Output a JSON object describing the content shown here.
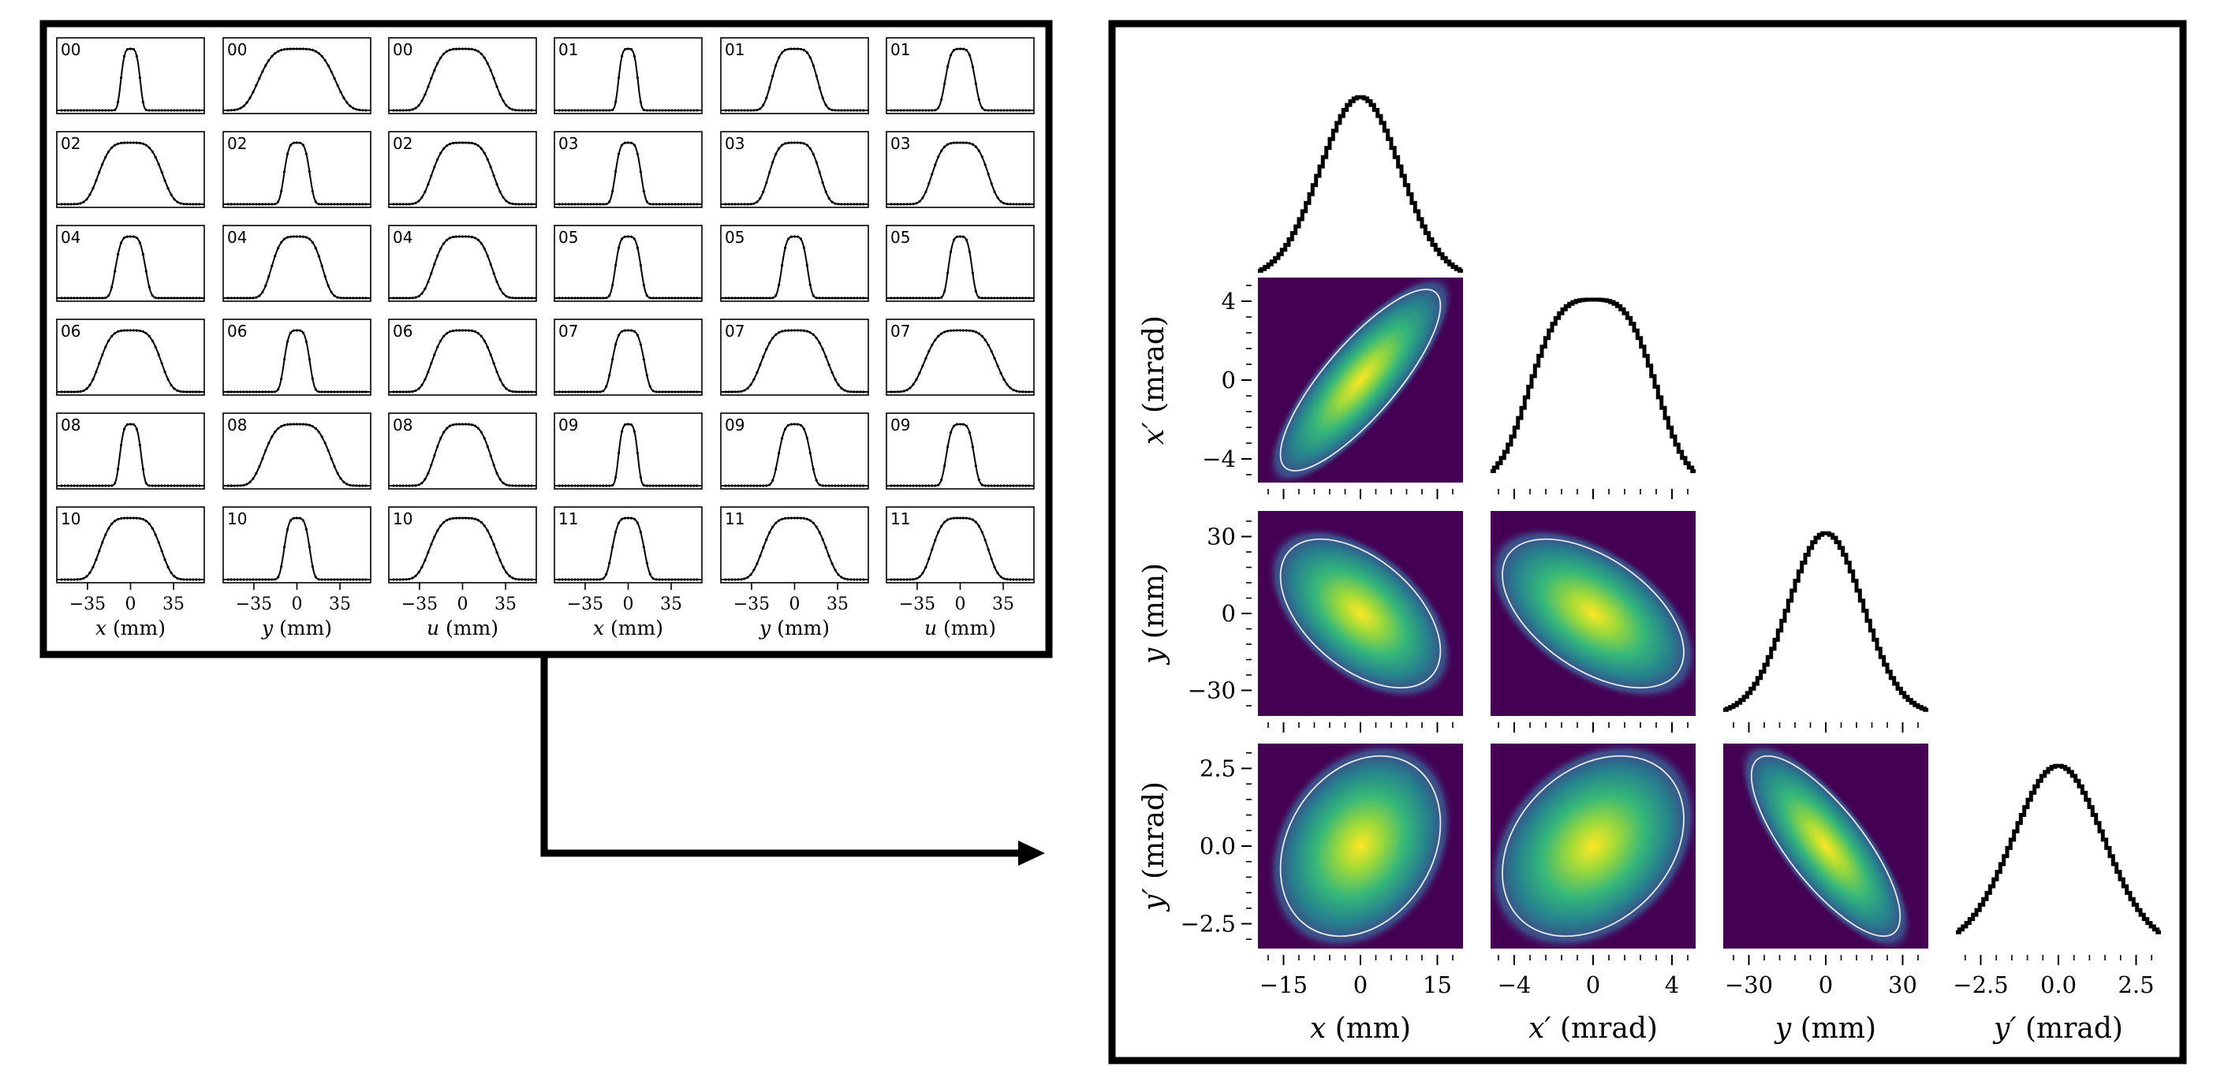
{
  "left_panel": {
    "axis_labels": [
      "x (mm)",
      "y (mm)",
      "u (mm)",
      "x (mm)",
      "y (mm)",
      "u (mm)"
    ],
    "axis_variables": [
      "x",
      "y",
      "u",
      "x",
      "y",
      "u"
    ],
    "axis_unit": "(mm)",
    "xtick_labels": [
      "−35",
      "0",
      "35"
    ],
    "rows": [
      [
        "00",
        "00",
        "00",
        "01",
        "01",
        "01"
      ],
      [
        "02",
        "02",
        "02",
        "03",
        "03",
        "03"
      ],
      [
        "04",
        "04",
        "04",
        "05",
        "05",
        "05"
      ],
      [
        "06",
        "06",
        "06",
        "07",
        "07",
        "07"
      ],
      [
        "08",
        "08",
        "08",
        "09",
        "09",
        "09"
      ],
      [
        "10",
        "10",
        "10",
        "11",
        "11",
        "11"
      ]
    ]
  },
  "right_panel": {
    "axis_labels": [
      "x (mm)",
      "x′ (mrad)",
      "y (mm)",
      "y′ (mrad)"
    ],
    "axis_variables": [
      "x",
      "x′",
      "y",
      "y′"
    ],
    "axis_units": [
      "(mm)",
      "(mrad)",
      "(mm)",
      "(mrad)"
    ],
    "xtick_labels": [
      [
        "−15",
        "0",
        "15"
      ],
      [
        "−4",
        "0",
        "4"
      ],
      [
        "−30",
        "0",
        "30"
      ],
      [
        "−2.5",
        "0.0",
        "2.5"
      ]
    ],
    "ytick_labels": [
      [],
      [
        "4",
        "0",
        "−4"
      ],
      [
        "30",
        "0",
        "−30"
      ],
      [
        "2.5",
        "0.0",
        "−2.5"
      ]
    ]
  },
  "colors": {
    "frame": "#000000",
    "heatmap_background": "#440154",
    "heatmap_mid": "#21918c",
    "heatmap_peak": "#fde725",
    "ellipse": "#e8e8f0",
    "line": "#000000"
  },
  "chart_data": [
    {
      "type": "line",
      "title": "",
      "description_grid": "6 x 6 grid of 1D beam profile measurements",
      "xlim": [
        -60,
        60
      ],
      "xticks": [
        -35,
        0,
        35
      ],
      "xlabels": [
        "x (mm)",
        "y (mm)",
        "u (mm)",
        "x (mm)",
        "y (mm)",
        "u (mm)"
      ],
      "profile_half_widths": [
        [
          9,
          30,
          25,
          9,
          18,
          14
        ],
        [
          25,
          12,
          24,
          12,
          20,
          22
        ],
        [
          14,
          20,
          23,
          12,
          12,
          11
        ],
        [
          24,
          12,
          24,
          15,
          26,
          28
        ],
        [
          10,
          26,
          22,
          9,
          15,
          13
        ],
        [
          24,
          12,
          26,
          15,
          25,
          22
        ]
      ]
    },
    {
      "type": "heatmap",
      "title": "",
      "variables": [
        "x",
        "x′",
        "y",
        "y′"
      ],
      "ranges": [
        [
          -20,
          20
        ],
        [
          -5.2,
          5.2
        ],
        [
          -40,
          40
        ],
        [
          -3.3,
          3.3
        ]
      ],
      "xticks": [
        [
          -15,
          0,
          15
        ],
        [
          -4,
          0,
          4
        ],
        [
          -30,
          0,
          30
        ],
        [
          -2.5,
          0.0,
          2.5
        ]
      ],
      "sigmas": [
        7.8,
        2.3,
        14.5,
        1.45
      ],
      "correlations": {
        "x-x′": 0.82,
        "x-y": -0.5,
        "x′-y": -0.52,
        "x-y′": 0.25,
        "x′-y′": 0.3,
        "y-y′": -0.78
      }
    }
  ]
}
